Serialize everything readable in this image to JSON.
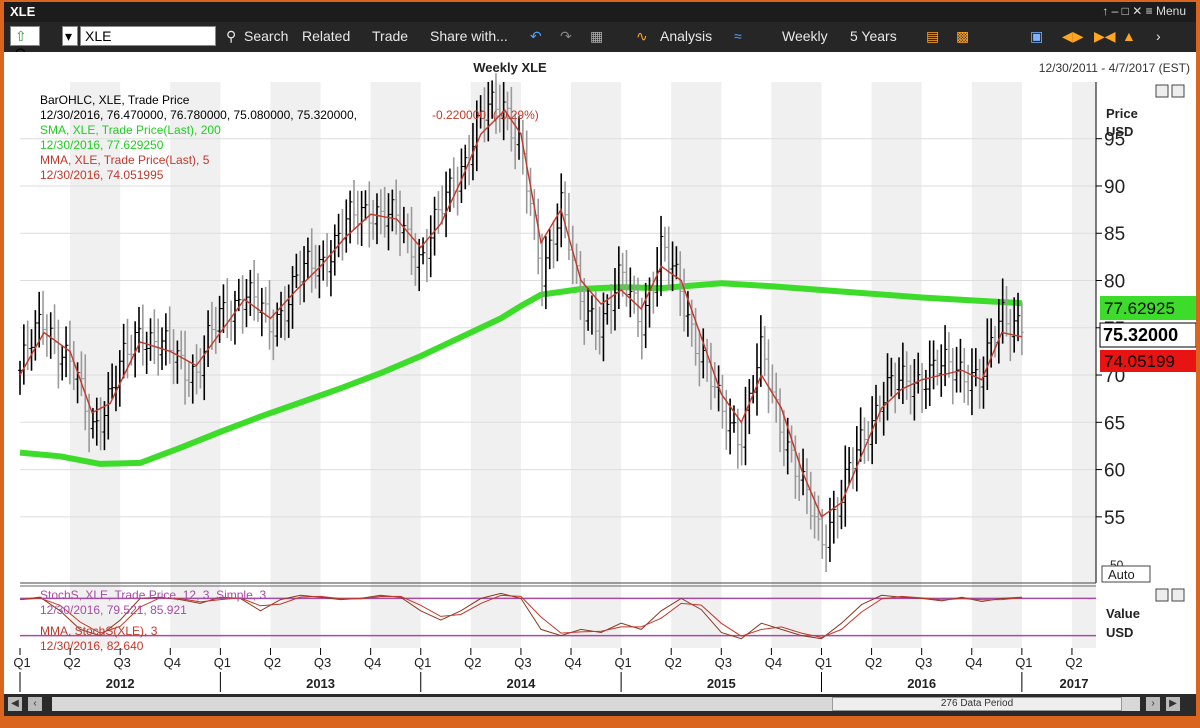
{
  "window": {
    "title": "XLE",
    "menu_label": "Menu",
    "controls": "↑ – □ ✕ ≡ Menu"
  },
  "toolbar": {
    "quote_type": "Q",
    "symbol_value": "XLE",
    "search_label": "Search",
    "related_label": "Related",
    "trade_label": "Trade",
    "share_label": "Share with...",
    "analysis_label": "Analysis",
    "interval_label": "Weekly",
    "range_label": "5 Years"
  },
  "chart": {
    "title": "Weekly XLE",
    "date_range": "12/30/2011 - 4/7/2017 (EST)",
    "legend_lines": [
      {
        "text": "BarOHLC, XLE, Trade Price",
        "color": "#000000"
      },
      {
        "text": "12/30/2016, 76.470000, 76.780000, 75.080000, 75.320000,",
        "color": "#000000"
      },
      {
        "text": "SMA, XLE, Trade Price(Last), 200",
        "color": "#22cc22"
      },
      {
        "text": "12/30/2016, 77.629250",
        "color": "#22cc22"
      },
      {
        "text": "MMA, XLE, Trade Price(Last), 5",
        "color": "#c0392b"
      },
      {
        "text": "12/30/2016, 74.051995",
        "color": "#c0392b"
      }
    ],
    "legend_change": "-0.220000, (-0.29%)",
    "price_axis_title": "Price",
    "price_axis_unit": "USD",
    "last_price_label": "75.32000",
    "sma_label": "77.62925",
    "mma_label": "74.05199",
    "auto_label": "Auto",
    "colors": {
      "sma": "#3ddc2a",
      "mma": "#c0392b",
      "bars_up": "#000000",
      "bars_dn": "#9a9a9a",
      "stoch": "#a64ca6",
      "stoch_mma": "#c0392b"
    }
  },
  "chart_data": {
    "type": "line",
    "title": "Weekly XLE",
    "ylabel": "Price USD",
    "ylim": [
      48,
      101
    ],
    "yticks": [
      55,
      60,
      65,
      70,
      75,
      80,
      85,
      90,
      95
    ],
    "ytick_extra": "50",
    "x_quarter_labels": [
      "Q1",
      "Q2",
      "Q3",
      "Q4",
      "Q1",
      "Q2",
      "Q3",
      "Q4",
      "Q1",
      "Q2",
      "Q3",
      "Q4",
      "Q1",
      "Q2",
      "Q3",
      "Q4",
      "Q1",
      "Q2",
      "Q3",
      "Q4",
      "Q1",
      "Q2"
    ],
    "x_years": [
      "2012",
      "2013",
      "2014",
      "2015",
      "2016",
      "2017"
    ],
    "x_range": [
      2012.0,
      2017.37
    ],
    "series": [
      {
        "name": "BarOHLC, XLE, Trade Price",
        "type": "ohlc_close",
        "x": [
          2012.0,
          2012.12,
          2012.25,
          2012.36,
          2012.45,
          2012.6,
          2012.75,
          2012.88,
          2013.0,
          2013.12,
          2013.25,
          2013.38,
          2013.5,
          2013.62,
          2013.75,
          2013.88,
          2014.0,
          2014.1,
          2014.2,
          2014.3,
          2014.42,
          2014.5,
          2014.6,
          2014.7,
          2014.8,
          2014.9,
          2015.0,
          2015.1,
          2015.2,
          2015.3,
          2015.4,
          2015.5,
          2015.6,
          2015.7,
          2015.8,
          2015.9,
          2016.0,
          2016.1,
          2016.2,
          2016.3,
          2016.4,
          2016.5,
          2016.6,
          2016.7,
          2016.8,
          2016.9,
          2017.0
        ],
        "y": [
          70.5,
          76.0,
          71.0,
          64.5,
          68.0,
          75.0,
          72.0,
          70.5,
          76.0,
          79.0,
          75.0,
          80.0,
          82.0,
          85.5,
          88.0,
          86.0,
          82.5,
          87.0,
          92.0,
          97.0,
          99.0,
          94.0,
          80.0,
          89.0,
          76.5,
          76.0,
          80.0,
          76.0,
          83.0,
          79.0,
          72.0,
          66.0,
          64.0,
          72.0,
          65.0,
          58.0,
          53.0,
          57.0,
          63.0,
          68.0,
          69.0,
          70.0,
          70.5,
          71.0,
          69.0,
          77.0,
          75.3
        ]
      },
      {
        "name": "SMA, XLE, Trade Price(Last), 200",
        "type": "line",
        "x": [
          2012.0,
          2012.2,
          2012.4,
          2012.6,
          2012.8,
          2013.0,
          2013.2,
          2013.4,
          2013.6,
          2013.8,
          2014.0,
          2014.2,
          2014.4,
          2014.5,
          2014.6,
          2014.8,
          2015.0,
          2015.2,
          2015.5,
          2015.75,
          2016.0,
          2016.25,
          2016.5,
          2016.75,
          2017.0
        ],
        "y": [
          61.8,
          61.4,
          60.6,
          60.7,
          62.3,
          64.0,
          65.6,
          67.1,
          68.6,
          70.2,
          72.0,
          74.0,
          76.0,
          77.3,
          78.5,
          79.1,
          79.3,
          79.2,
          79.7,
          79.4,
          79.0,
          78.6,
          78.2,
          77.9,
          77.6
        ]
      },
      {
        "name": "MMA, XLE, Trade Price(Last), 5",
        "type": "line",
        "x": [
          2012.0,
          2012.12,
          2012.25,
          2012.36,
          2012.45,
          2012.6,
          2012.75,
          2012.88,
          2013.0,
          2013.12,
          2013.25,
          2013.38,
          2013.5,
          2013.62,
          2013.75,
          2013.88,
          2014.0,
          2014.1,
          2014.2,
          2014.3,
          2014.42,
          2014.5,
          2014.6,
          2014.7,
          2014.8,
          2014.9,
          2015.0,
          2015.1,
          2015.2,
          2015.3,
          2015.4,
          2015.5,
          2015.6,
          2015.7,
          2015.8,
          2015.9,
          2016.0,
          2016.1,
          2016.2,
          2016.3,
          2016.4,
          2016.5,
          2016.6,
          2016.7,
          2016.8,
          2016.9,
          2017.0
        ],
        "y": [
          70.0,
          74.5,
          72.5,
          66.0,
          67.0,
          73.5,
          72.5,
          71.0,
          74.5,
          78.0,
          76.0,
          79.0,
          81.5,
          84.5,
          87.0,
          86.5,
          83.5,
          86.0,
          90.5,
          95.5,
          98.0,
          95.5,
          84.0,
          87.5,
          80.0,
          77.5,
          79.0,
          77.0,
          81.5,
          80.0,
          74.0,
          68.0,
          65.0,
          70.0,
          66.5,
          60.0,
          55.0,
          56.5,
          61.5,
          66.5,
          68.5,
          69.5,
          70.0,
          70.5,
          69.5,
          74.5,
          74.05
        ]
      }
    ],
    "indicator": {
      "title": "Value USD",
      "series": [
        {
          "name": "StochS, XLE, Trade Price, 12, 3, Simple, 3",
          "type": "line"
        },
        {
          "name": "MMA, StochS(XLE), 3",
          "type": "line"
        }
      ],
      "values_label_1": "12/30/2016, 79.521, 85.921",
      "values_label_2": "12/30/2016, 82.640",
      "ylim": [
        0,
        100
      ],
      "hlines": [
        80,
        20
      ],
      "x": [
        2012.0,
        2012.1,
        2012.2,
        2012.3,
        2012.4,
        2012.5,
        2012.6,
        2012.7,
        2012.8,
        2012.9,
        2013.0,
        2013.1,
        2013.2,
        2013.3,
        2013.4,
        2013.5,
        2013.6,
        2013.7,
        2013.8,
        2013.9,
        2014.0,
        2014.1,
        2014.2,
        2014.3,
        2014.4,
        2014.5,
        2014.6,
        2014.7,
        2014.8,
        2014.9,
        2015.0,
        2015.1,
        2015.2,
        2015.3,
        2015.4,
        2015.5,
        2015.6,
        2015.7,
        2015.8,
        2015.9,
        2016.0,
        2016.1,
        2016.2,
        2016.3,
        2016.4,
        2016.5,
        2016.6,
        2016.7,
        2016.8,
        2016.9,
        2017.0
      ],
      "y": [
        78,
        82,
        60,
        30,
        20,
        45,
        80,
        82,
        78,
        72,
        82,
        80,
        60,
        78,
        85,
        82,
        78,
        80,
        85,
        82,
        60,
        45,
        60,
        80,
        88,
        80,
        30,
        20,
        30,
        25,
        40,
        30,
        60,
        80,
        62,
        25,
        15,
        40,
        30,
        20,
        15,
        40,
        70,
        85,
        82,
        80,
        76,
        82,
        75,
        80,
        82
      ]
    }
  },
  "bottom": {
    "period_label": "276 Data Period"
  }
}
